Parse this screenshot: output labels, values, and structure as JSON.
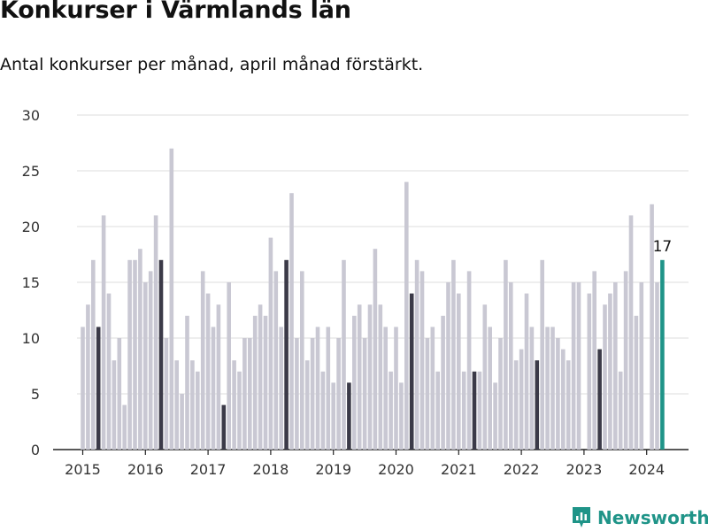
{
  "page": {
    "title": "Konkurser i Värmlands län",
    "subtitle": "Antal konkurser per månad, april månad förstärkt.",
    "brand": "Newsworthy",
    "brand_color": "#1f9488"
  },
  "chart_data": {
    "type": "bar",
    "title": "Konkurser i Värmlands län",
    "subtitle": "Antal konkurser per månad, april månad förstärkt.",
    "start_month": "2015-01",
    "x_tick_labels": [
      "2015",
      "2016",
      "2017",
      "2018",
      "2019",
      "2020",
      "2021",
      "2022",
      "2023",
      "2024"
    ],
    "ylim": [
      0,
      30
    ],
    "y_ticks": [
      0,
      5,
      10,
      15,
      20,
      25,
      30
    ],
    "grid": true,
    "values": [
      11,
      13,
      17,
      11,
      21,
      14,
      8,
      10,
      4,
      17,
      17,
      18,
      15,
      16,
      21,
      17,
      10,
      27,
      8,
      5,
      12,
      8,
      7,
      16,
      14,
      11,
      13,
      4,
      15,
      8,
      7,
      10,
      10,
      12,
      13,
      12,
      19,
      16,
      11,
      17,
      23,
      10,
      16,
      8,
      10,
      11,
      7,
      11,
      6,
      10,
      17,
      6,
      12,
      13,
      10,
      13,
      18,
      13,
      11,
      7,
      11,
      6,
      24,
      14,
      17,
      16,
      10,
      11,
      7,
      12,
      15,
      17,
      14,
      7,
      16,
      7,
      7,
      13,
      11,
      6,
      10,
      17,
      15,
      8,
      9,
      14,
      11,
      8,
      17,
      11,
      11,
      10,
      9,
      8,
      15,
      15,
      0,
      14,
      16,
      9,
      13,
      14,
      15,
      7,
      16,
      21,
      12,
      15,
      0,
      22,
      15,
      17
    ],
    "highlight_month": "April",
    "last_value_label": "17",
    "colors": {
      "default": "#c9c8d3",
      "april": "#3b3a48",
      "latest": "#1f9488"
    }
  }
}
